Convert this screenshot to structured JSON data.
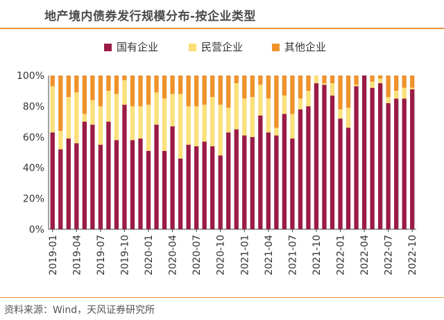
{
  "title": "地产境内债券发行规模分布-按企业类型",
  "source": "资料来源：Wind，天风证券研究所",
  "chart_data": {
    "type": "bar",
    "stacked": true,
    "percent": true,
    "categories": [
      "2019-01",
      "2019-02",
      "2019-03",
      "2019-04",
      "2019-05",
      "2019-06",
      "2019-07",
      "2019-08",
      "2019-09",
      "2019-10",
      "2019-11",
      "2019-12",
      "2020-01",
      "2020-02",
      "2020-03",
      "2020-04",
      "2020-05",
      "2020-06",
      "2020-07",
      "2020-08",
      "2020-09",
      "2020-10",
      "2020-11",
      "2020-12",
      "2021-01",
      "2021-02",
      "2021-03",
      "2021-04",
      "2021-05",
      "2021-06",
      "2021-07",
      "2021-08",
      "2021-09",
      "2021-10",
      "2021-11",
      "2021-12",
      "2022-01",
      "2022-02",
      "2022-03",
      "2022-04",
      "2022-05",
      "2022-06",
      "2022-07",
      "2022-08",
      "2022-09",
      "2022-10"
    ],
    "tick_labels": [
      "2019-01",
      "2019-04",
      "2019-07",
      "2019-10",
      "2020-01",
      "2020-04",
      "2020-07",
      "2020-10",
      "2021-01",
      "2021-04",
      "2021-07",
      "2021-10",
      "2022-01",
      "2022-04",
      "2022-07",
      "2022-10"
    ],
    "series": [
      {
        "name": "国有企业",
        "color": "#9b1c44",
        "values": [
          63,
          52,
          59,
          56,
          70,
          68,
          55,
          70,
          58,
          81,
          58,
          59,
          51,
          68,
          51,
          67,
          46,
          55,
          54,
          57,
          54,
          48,
          63,
          65,
          61,
          60,
          74,
          63,
          61,
          75,
          59,
          78,
          80,
          95,
          94,
          87,
          72,
          66,
          93,
          100,
          92,
          95,
          82,
          85,
          85,
          91
        ]
      },
      {
        "name": "民营企业",
        "color": "#fbe07a",
        "values": [
          30,
          12,
          27,
          33,
          5,
          16,
          25,
          20,
          30,
          16,
          22,
          21,
          30,
          21,
          34,
          21,
          42,
          25,
          26,
          24,
          32,
          33,
          16,
          30,
          24,
          26,
          20,
          22,
          5,
          12,
          16,
          7,
          10,
          5,
          1,
          8,
          6,
          13,
          1,
          0,
          4,
          3,
          4,
          5,
          7,
          1
        ]
      },
      {
        "name": "其他企业",
        "color": "#f0922b",
        "values": [
          7,
          36,
          14,
          11,
          25,
          16,
          20,
          10,
          12,
          3,
          20,
          20,
          19,
          11,
          15,
          12,
          12,
          20,
          20,
          19,
          14,
          19,
          21,
          5,
          15,
          14,
          6,
          15,
          34,
          13,
          25,
          15,
          10,
          0,
          5,
          5,
          22,
          21,
          6,
          0,
          4,
          2,
          14,
          10,
          8,
          8
        ]
      }
    ],
    "y_tick_labels": [
      "0%",
      "20%",
      "40%",
      "60%",
      "80%",
      "100%"
    ],
    "ylim": [
      0,
      100
    ],
    "legend_position": "top-center",
    "grid": false
  }
}
